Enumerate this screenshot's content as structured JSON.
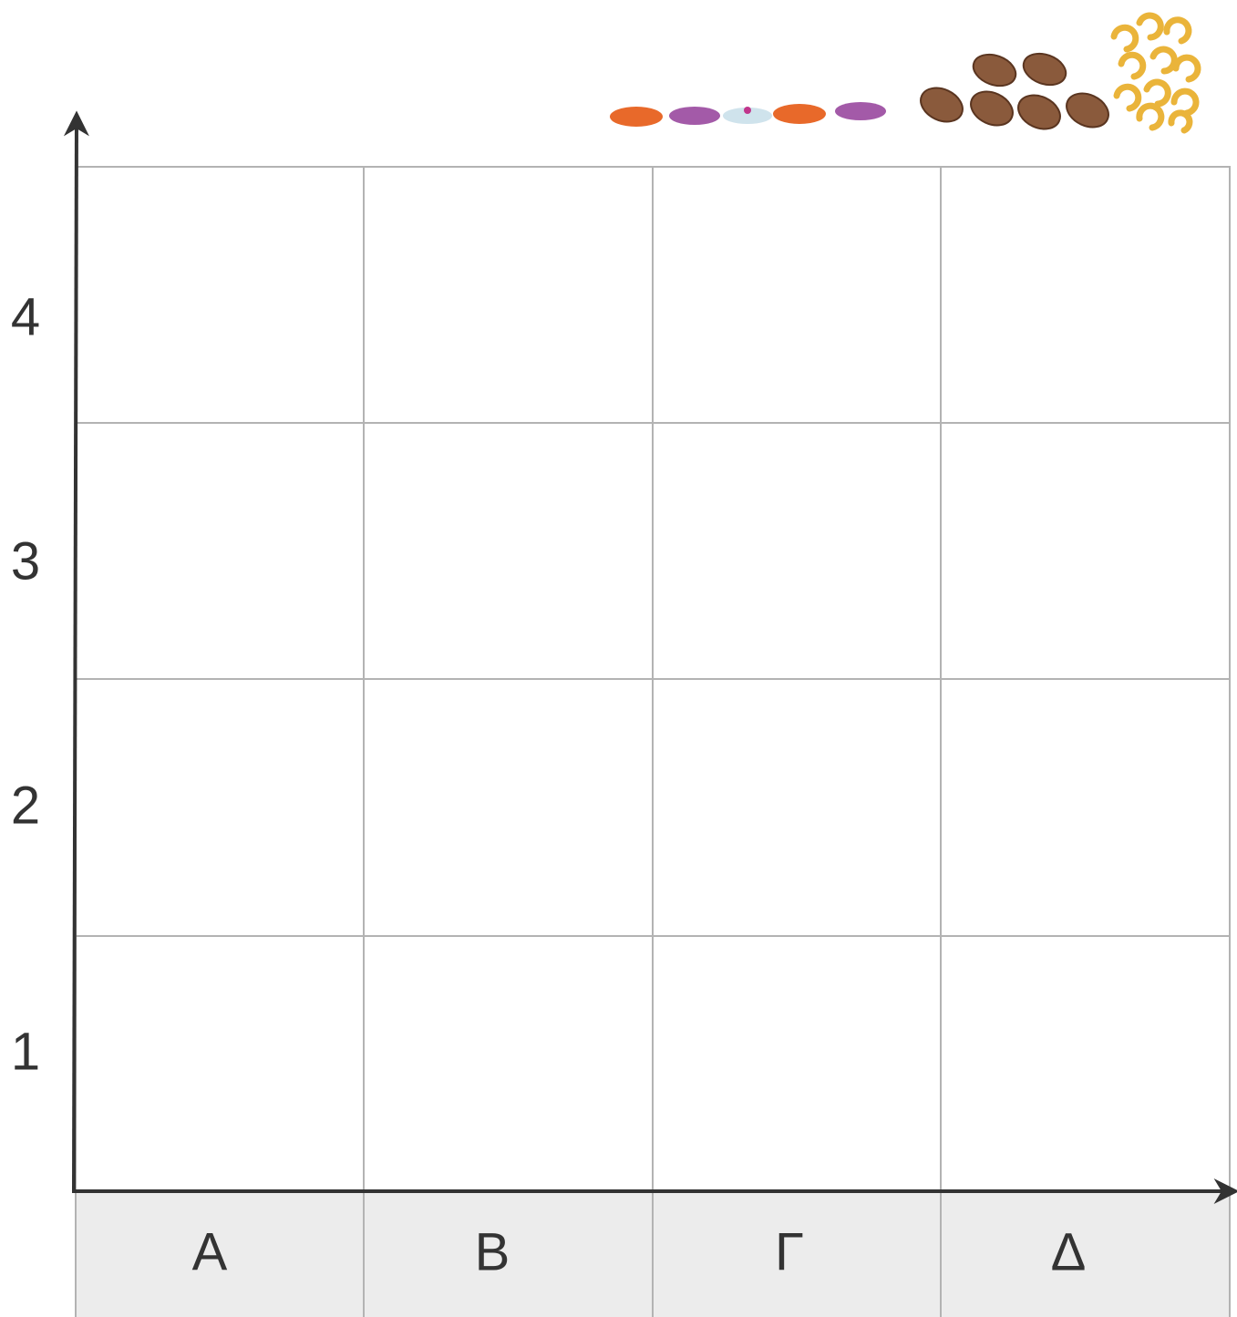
{
  "y_labels": [
    "1",
    "2",
    "3",
    "4"
  ],
  "x_labels": [
    "Α",
    "Β",
    "Γ",
    "Δ"
  ]
}
